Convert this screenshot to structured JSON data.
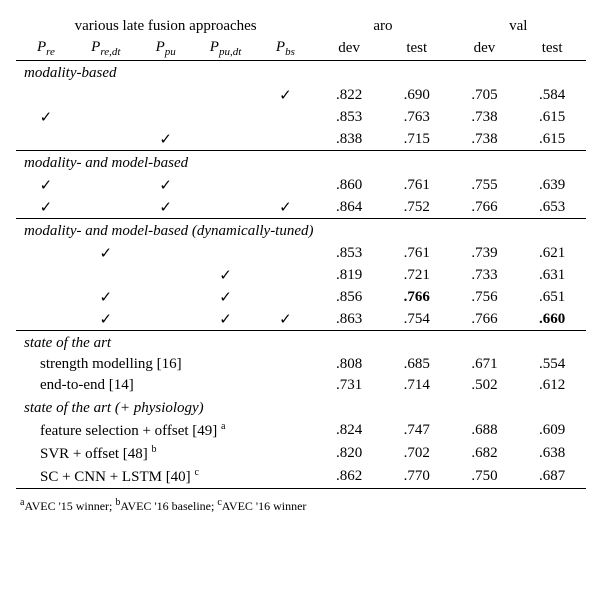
{
  "header": {
    "approaches_label": "various late fusion approaches",
    "aro_label": "aro",
    "val_label": "val",
    "dev_label": "dev",
    "test_label": "test",
    "cols": {
      "Pre": "P",
      "Pre_sub": "re",
      "Predt": "P",
      "Predt_sub": "re,dt",
      "Ppu": "P",
      "Ppu_sub": "pu",
      "Ppudt": "P",
      "Ppudt_sub": "pu,dt",
      "Pbs": "P",
      "Pbs_sub": "bs"
    }
  },
  "check_glyph": "✓",
  "sections": [
    {
      "label": "modality-based",
      "rows": [
        {
          "marks": [
            false,
            false,
            false,
            false,
            true
          ],
          "aro_dev": ".822",
          "aro_test": ".690",
          "val_dev": ".705",
          "val_test": ".584"
        },
        {
          "marks": [
            true,
            false,
            false,
            false,
            false
          ],
          "aro_dev": ".853",
          "aro_test": ".763",
          "val_dev": ".738",
          "val_test": ".615"
        },
        {
          "marks": [
            false,
            false,
            true,
            false,
            false
          ],
          "aro_dev": ".838",
          "aro_test": ".715",
          "val_dev": ".738",
          "val_test": ".615"
        }
      ]
    },
    {
      "label": "modality- and model-based",
      "rows": [
        {
          "marks": [
            true,
            false,
            true,
            false,
            false
          ],
          "aro_dev": ".860",
          "aro_test": ".761",
          "val_dev": ".755",
          "val_test": ".639"
        },
        {
          "marks": [
            true,
            false,
            true,
            false,
            true
          ],
          "aro_dev": ".864",
          "aro_test": ".752",
          "val_dev": ".766",
          "val_test": ".653"
        }
      ]
    },
    {
      "label": "modality- and model-based (dynamically-tuned)",
      "rows": [
        {
          "marks": [
            false,
            true,
            false,
            false,
            false
          ],
          "aro_dev": ".853",
          "aro_test": ".761",
          "val_dev": ".739",
          "val_test": ".621"
        },
        {
          "marks": [
            false,
            false,
            false,
            true,
            false
          ],
          "aro_dev": ".819",
          "aro_test": ".721",
          "val_dev": ".733",
          "val_test": ".631"
        },
        {
          "marks": [
            false,
            true,
            false,
            true,
            false
          ],
          "aro_dev": ".856",
          "aro_test": ".766",
          "val_dev": ".756",
          "val_test": ".651",
          "bold_aro_test": true
        },
        {
          "marks": [
            false,
            true,
            false,
            true,
            true
          ],
          "aro_dev": ".863",
          "aro_test": ".754",
          "val_dev": ".766",
          "val_test": ".660",
          "bold_val_test": true
        }
      ]
    }
  ],
  "sota": {
    "label1": "state of the art",
    "rows1": [
      {
        "name": "strength modelling [16]",
        "aro_dev": ".808",
        "aro_test": ".685",
        "val_dev": ".671",
        "val_test": ".554"
      },
      {
        "name": "end-to-end [14]",
        "aro_dev": ".731",
        "aro_test": ".714",
        "val_dev": ".502",
        "val_test": ".612"
      }
    ],
    "label2": "state of the art (+ physiology)",
    "rows2": [
      {
        "name": "feature selection + offset [49] ",
        "sup": "a",
        "aro_dev": ".824",
        "aro_test": ".747",
        "val_dev": ".688",
        "val_test": ".609"
      },
      {
        "name": "SVR + offset [48] ",
        "sup": "b",
        "aro_dev": ".820",
        "aro_test": ".702",
        "val_dev": ".682",
        "val_test": ".638"
      },
      {
        "name": "SC + CNN + LSTM [40] ",
        "sup": "c",
        "aro_dev": ".862",
        "aro_test": ".770",
        "val_dev": ".750",
        "val_test": ".687"
      }
    ]
  },
  "footnotes": {
    "a": "AVEC '15 winner; ",
    "b": "AVEC '16 baseline; ",
    "c": "AVEC '16 winner"
  }
}
